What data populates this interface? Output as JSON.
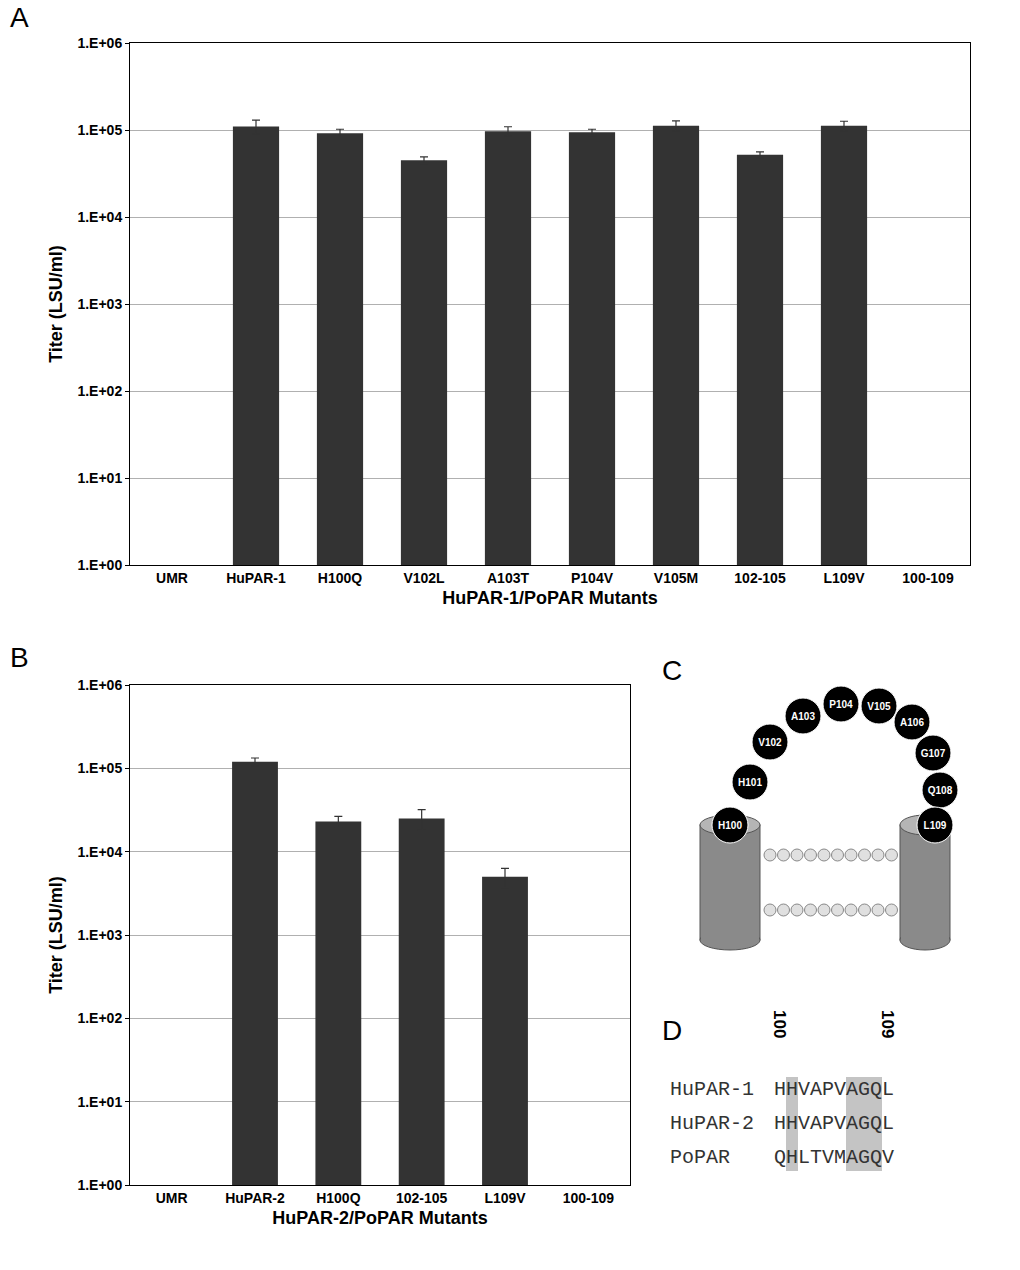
{
  "chart_data": [
    {
      "type": "bar",
      "title": "A",
      "x_label": "HuPAR-1/PoPAR Mutants",
      "y_label": "Titer (LSU/ml)",
      "categories": [
        "UMR",
        "HuPAR-1",
        "H100Q",
        "V102L",
        "A103T",
        "P104V",
        "V105M",
        "102-105",
        "L109V",
        "100-109"
      ],
      "values": [
        null,
        110000,
        92000,
        45000,
        97000,
        94000,
        112000,
        52000,
        112000,
        null
      ],
      "errors": [
        null,
        20000,
        10000,
        4000,
        12000,
        8000,
        15000,
        4000,
        14000,
        null
      ],
      "color": "#333333",
      "log": "y",
      "grid": true,
      "ylim": [
        1,
        1000000
      ],
      "yticks": [
        {
          "value": 1,
          "label": "1.E+00"
        },
        {
          "value": 10,
          "label": "1.E+01"
        },
        {
          "value": 100,
          "label": "1.E+02"
        },
        {
          "value": 1000,
          "label": "1.E+03"
        },
        {
          "value": 10000,
          "label": "1.E+04"
        },
        {
          "value": 100000,
          "label": "1.E+05"
        },
        {
          "value": 1000000,
          "label": "1.E+06"
        }
      ]
    },
    {
      "type": "bar",
      "title": "B",
      "x_label": "HuPAR-2/PoPAR Mutants",
      "y_label": "Titer (LSU/ml)",
      "categories": [
        "UMR",
        "HuPAR-2",
        "H100Q",
        "102-105",
        "L109V",
        "100-109"
      ],
      "values": [
        null,
        120000,
        23000,
        25000,
        5000,
        null
      ],
      "errors": [
        null,
        13000,
        3500,
        7000,
        1300,
        null
      ],
      "color": "#333333",
      "log": "y",
      "grid": true,
      "ylim": [
        1,
        1000000
      ],
      "yticks": [
        {
          "value": 1,
          "label": "1.E+00"
        },
        {
          "value": 10,
          "label": "1.E+01"
        },
        {
          "value": 100,
          "label": "1.E+02"
        },
        {
          "value": 1000,
          "label": "1.E+03"
        },
        {
          "value": 10000,
          "label": "1.E+04"
        },
        {
          "value": 100000,
          "label": "1.E+05"
        },
        {
          "value": 1000000,
          "label": "1.E+06"
        }
      ]
    }
  ],
  "diagram": {
    "title": "C",
    "residues": [
      "H100",
      "H101",
      "V102",
      "A103",
      "P104",
      "V105",
      "A106",
      "G107",
      "Q108",
      "L109"
    ]
  },
  "alignment": {
    "title": "D",
    "positions": [
      100,
      109
    ],
    "highlighted": [
      101,
      106,
      107,
      108
    ],
    "rows": [
      {
        "name": "HuPAR-1",
        "sequence": "HHVAPVAGQL"
      },
      {
        "name": "HuPAR-2",
        "sequence": "HHVAPVAGQL"
      },
      {
        "name": "PoPAR",
        "sequence": "QHLTVMAGQV"
      }
    ]
  }
}
